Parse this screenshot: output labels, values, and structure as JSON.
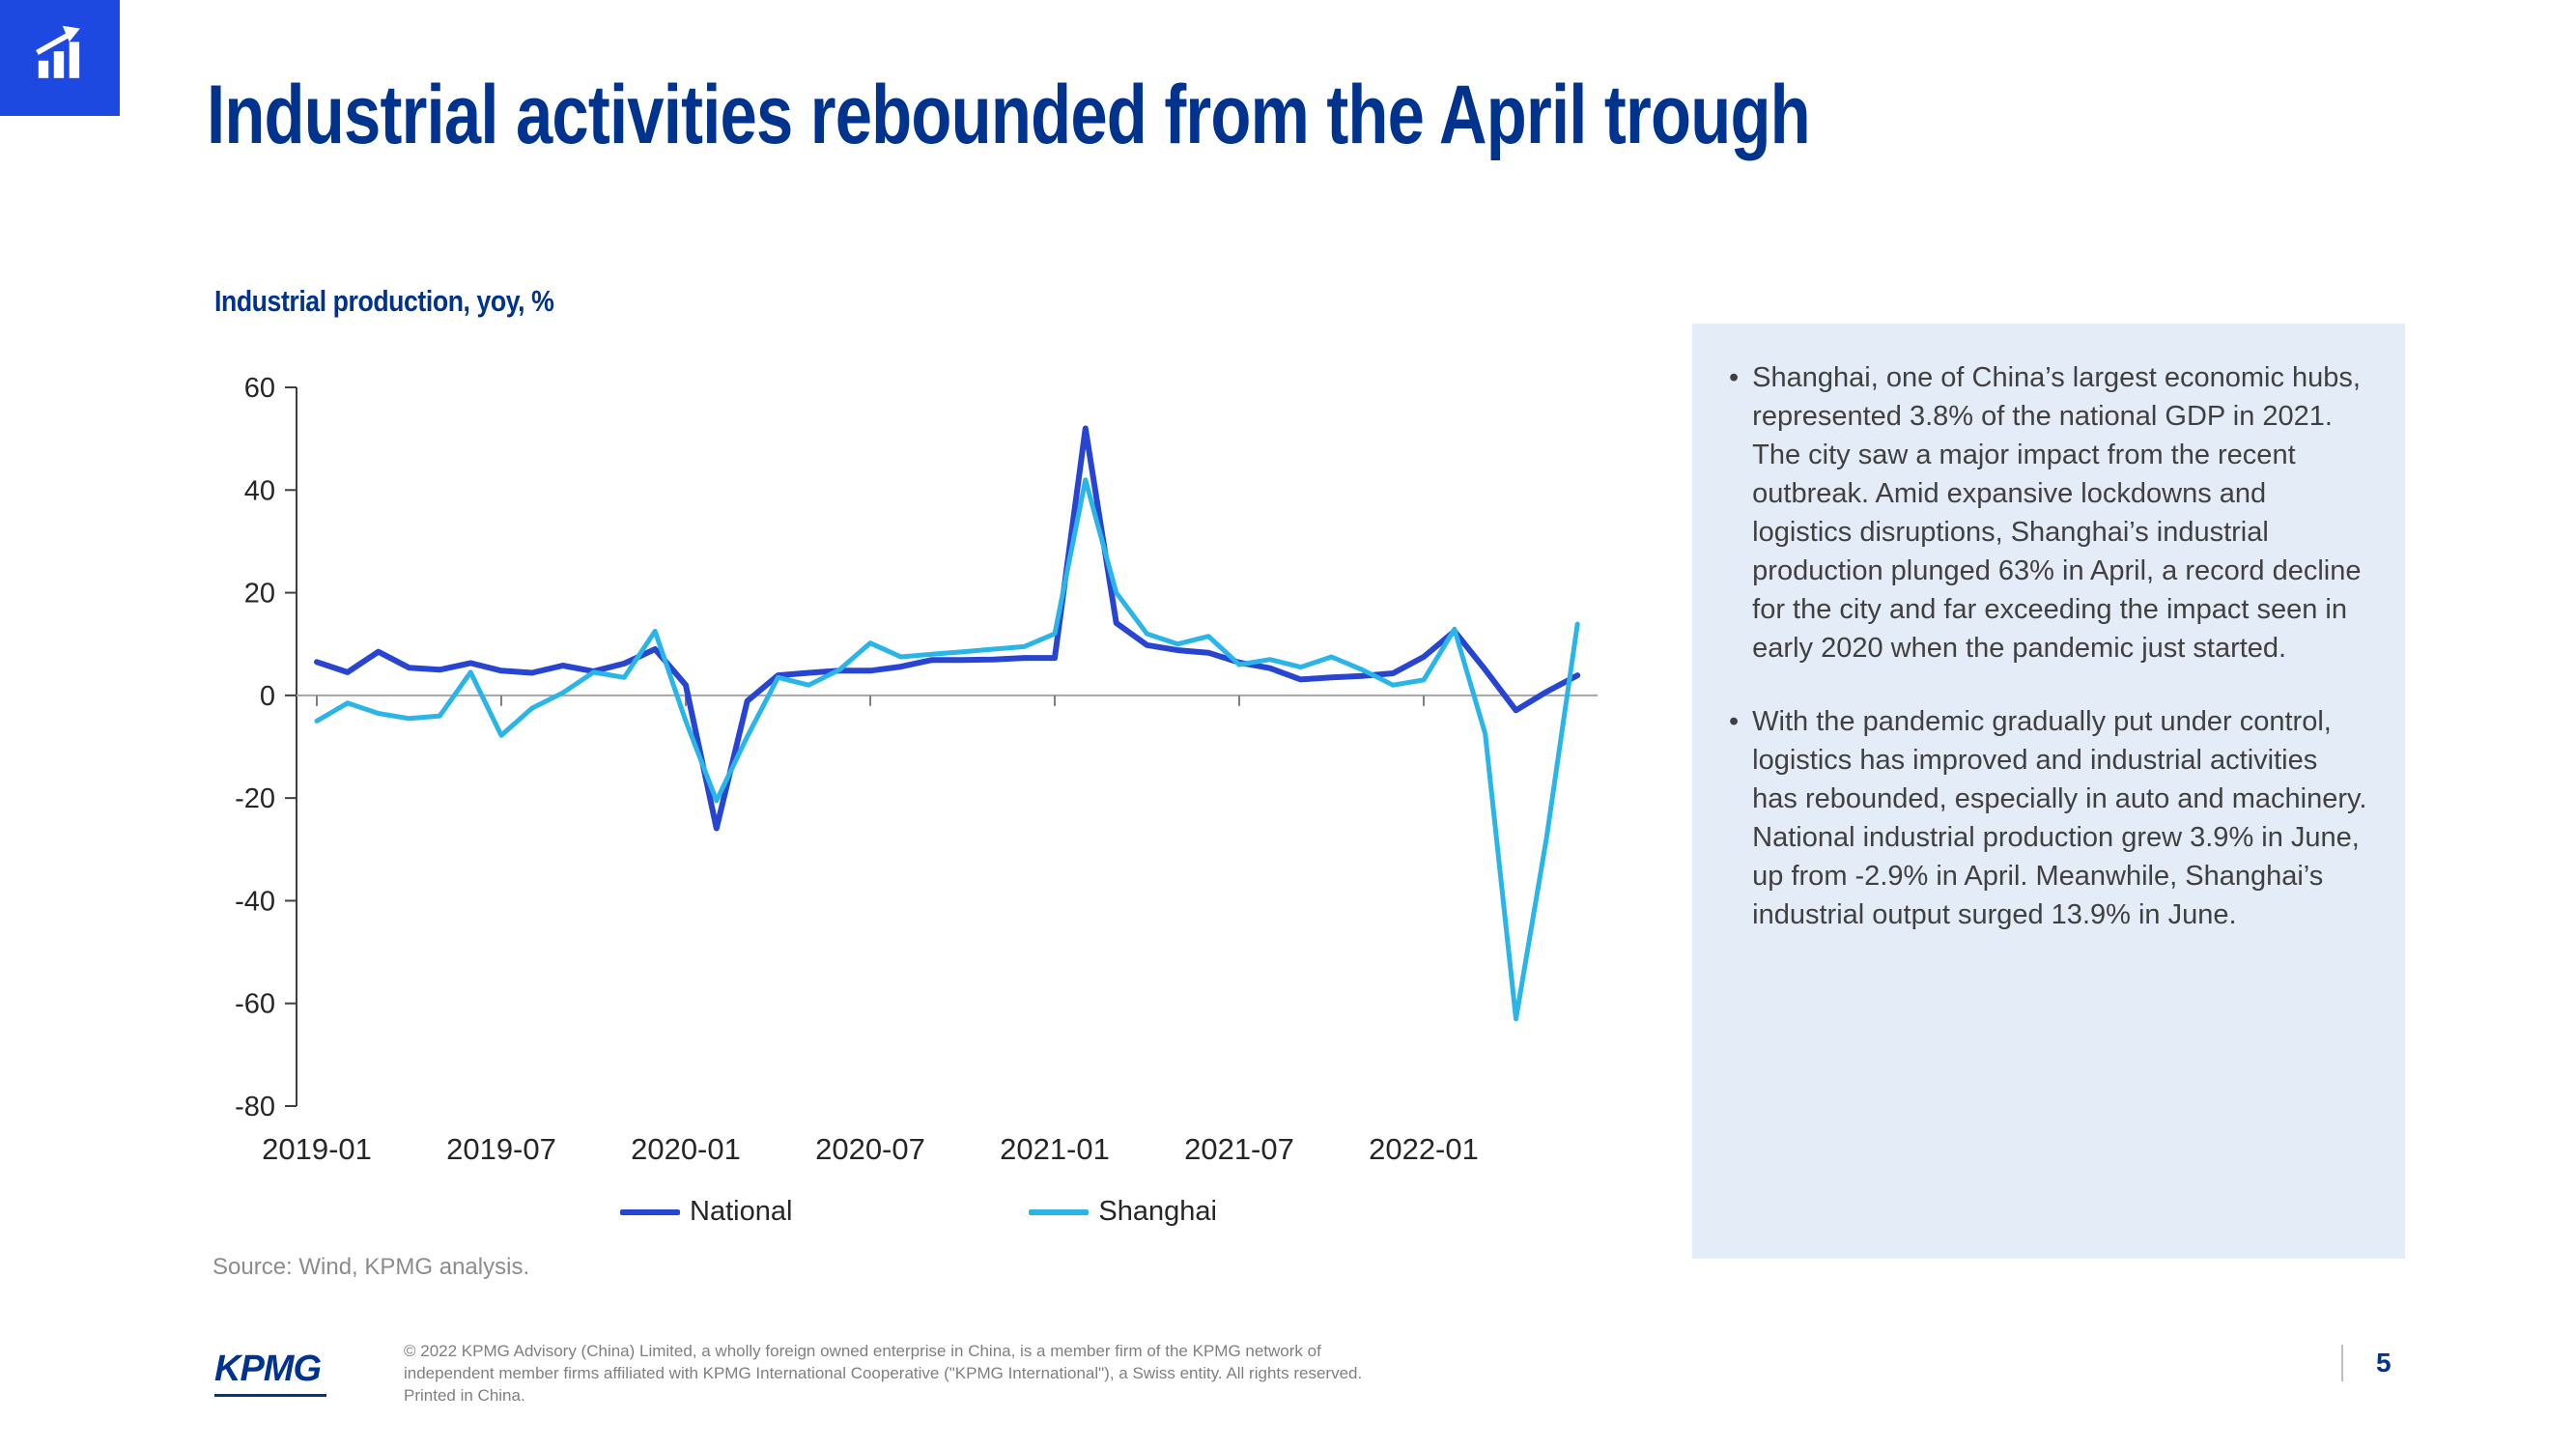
{
  "slide": {
    "title": "Industrial activities rebounded from the April trough",
    "page_number": "5"
  },
  "colors": {
    "brand_navy": "#00338D",
    "logo_blue": "#1E49E0",
    "panel_bg": "#E4EDF7",
    "axis": "#404040",
    "zero_line": "#A6A6A6"
  },
  "chart": {
    "label": "Industrial production, yoy, %",
    "source": "Source: Wind, KPMG analysis."
  },
  "chart_data": {
    "type": "line",
    "title": "Industrial production, yoy, %",
    "xlabel": "",
    "ylabel": "yoy, %",
    "ylim": [
      -80,
      60
    ],
    "yticks": [
      60,
      40,
      20,
      0,
      -20,
      -40,
      -60,
      -80
    ],
    "xtick_indices": [
      0,
      6,
      12,
      18,
      24,
      30,
      36
    ],
    "xtick_labels": [
      "2019-01",
      "2019-07",
      "2020-01",
      "2020-07",
      "2021-01",
      "2021-07",
      "2022-01"
    ],
    "months": [
      "2019-01",
      "2019-02",
      "2019-03",
      "2019-04",
      "2019-05",
      "2019-06",
      "2019-07",
      "2019-08",
      "2019-09",
      "2019-10",
      "2019-11",
      "2019-12",
      "2020-01",
      "2020-02",
      "2020-03",
      "2020-04",
      "2020-05",
      "2020-06",
      "2020-07",
      "2020-08",
      "2020-09",
      "2020-10",
      "2020-11",
      "2020-12",
      "2021-01",
      "2021-02",
      "2021-03",
      "2021-04",
      "2021-05",
      "2021-06",
      "2021-07",
      "2021-08",
      "2021-09",
      "2021-10",
      "2021-11",
      "2021-12",
      "2022-01",
      "2022-02",
      "2022-03",
      "2022-04",
      "2022-05",
      "2022-06"
    ],
    "legend_position": "bottom",
    "grid": false,
    "series": [
      {
        "name": "National",
        "color": "#2745D0",
        "values": [
          6.5,
          4.5,
          8.5,
          5.4,
          5.0,
          6.3,
          4.8,
          4.4,
          5.8,
          4.7,
          6.2,
          9.0,
          2.0,
          -25.9,
          -1.1,
          3.9,
          4.4,
          4.8,
          4.8,
          5.6,
          6.9,
          6.9,
          7.0,
          7.3,
          7.3,
          52.0,
          14.1,
          9.8,
          8.8,
          8.3,
          6.4,
          5.3,
          3.1,
          3.5,
          3.8,
          4.3,
          7.5,
          12.5,
          5.0,
          -2.9,
          0.7,
          3.9
        ]
      },
      {
        "name": "Shanghai",
        "color": "#29B5E8",
        "values": [
          -5.0,
          -1.5,
          -3.5,
          -4.5,
          -4.0,
          4.5,
          -7.8,
          -2.5,
          0.5,
          4.5,
          3.5,
          12.5,
          -5.0,
          -20.5,
          -8.0,
          3.5,
          2.0,
          5.0,
          10.2,
          7.5,
          8.0,
          8.5,
          9.0,
          9.5,
          12.0,
          42.0,
          20.0,
          12.0,
          10.0,
          11.5,
          6.0,
          7.0,
          5.5,
          7.5,
          5.0,
          2.0,
          3.0,
          12.9,
          -7.5,
          -63.0,
          -27.6,
          13.9
        ]
      }
    ]
  },
  "panel": {
    "bullets": [
      "Shanghai, one of China’s largest economic hubs, represented 3.8% of the national GDP in 2021. The city saw a major impact from the recent outbreak. Amid expansive lockdowns and logistics disruptions, Shanghai’s industrial production plunged 63% in April, a record decline for the city and far exceeding the impact seen in early 2020 when the pandemic just started.",
      "With the pandemic gradually put under control, logistics has improved and industrial activities has rebounded,  especially in auto and machinery. National industrial production grew 3.9% in June, up from -2.9% in April. Meanwhile, Shanghai’s industrial output surged 13.9% in June."
    ]
  },
  "footer": {
    "kpmg_logo_text": "KPMG",
    "copyright_lines": [
      "© 2022 KPMG Advisory (China) Limited, a wholly foreign owned enterprise in China, is a member firm of the KPMG network of",
      "independent  member firms affiliated with KPMG International Cooperative (\"KPMG International\"), a Swiss entity.  All rights reserved.",
      "Printed in China."
    ]
  }
}
